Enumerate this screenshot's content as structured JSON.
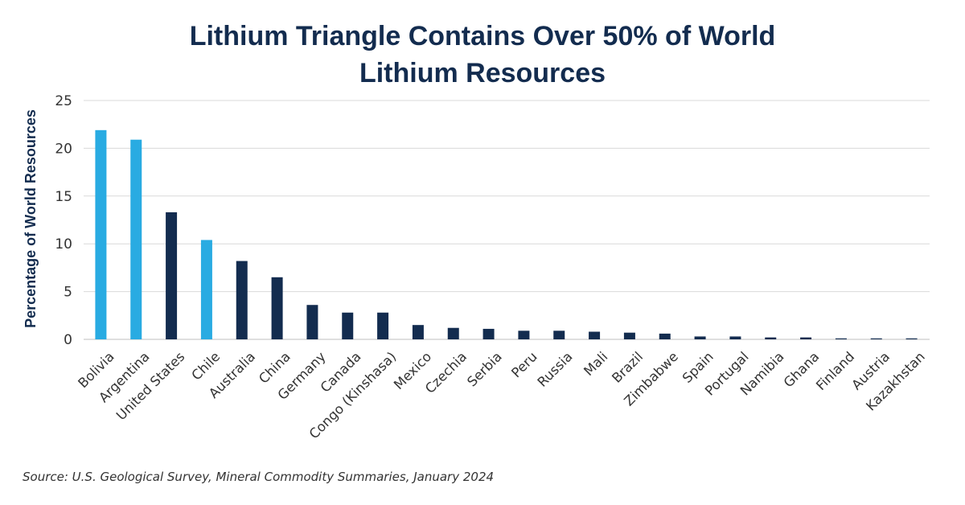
{
  "title_line1": "Lithium Triangle Contains Over 50% of World",
  "title_line2": "Lithium Resources",
  "source": "Source: U.S. Geological Survey, Mineral Commodity Summaries, January 2024",
  "colors": {
    "highlight": "#29abe2",
    "default": "#132c4f",
    "grid": "#d9d9d9",
    "text": "#333333",
    "title": "#132c4f"
  },
  "chart_data": {
    "type": "bar",
    "title": "Lithium Triangle Contains Over 50% of World Lithium Resources",
    "xlabel": "",
    "ylabel": "Percentage of World Resources",
    "ylim": [
      0,
      25
    ],
    "yticks": [
      0,
      5,
      10,
      15,
      20,
      25
    ],
    "grid": true,
    "categories": [
      "Bolivia",
      "Argentina",
      "United States",
      "Chile",
      "Australia",
      "China",
      "Germany",
      "Canada",
      "Congo (Kinshasa)",
      "Mexico",
      "Czechia",
      "Serbia",
      "Peru",
      "Russia",
      "Mali",
      "Brazil",
      "Zimbabwe",
      "Spain",
      "Portugal",
      "Namibia",
      "Ghana",
      "Finland",
      "Austria",
      "Kazakhstan"
    ],
    "values": [
      21.9,
      20.9,
      13.3,
      10.4,
      8.2,
      6.5,
      3.6,
      2.8,
      2.8,
      1.5,
      1.2,
      1.1,
      0.9,
      0.9,
      0.8,
      0.7,
      0.6,
      0.3,
      0.3,
      0.2,
      0.2,
      0.1,
      0.1,
      0.1
    ],
    "highlighted": [
      "Bolivia",
      "Argentina",
      "Chile"
    ]
  }
}
